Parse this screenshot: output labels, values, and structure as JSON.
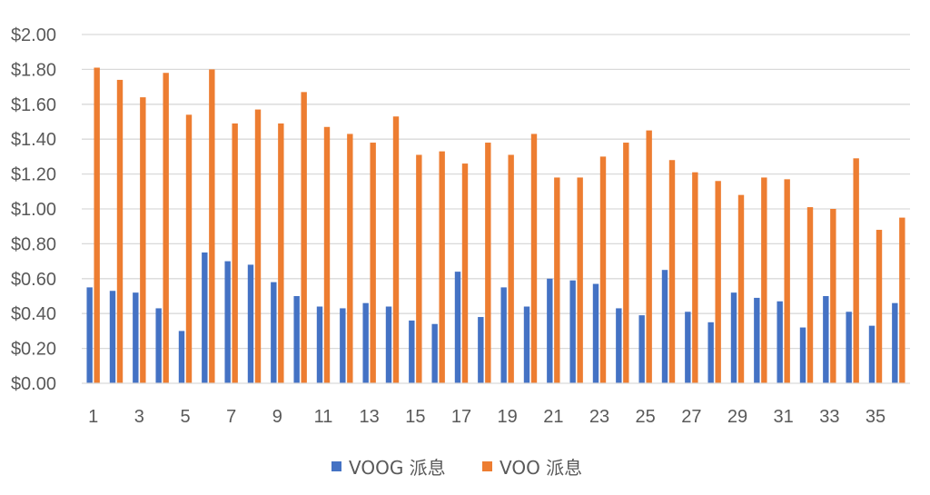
{
  "chart_data": {
    "type": "bar",
    "title": "",
    "xlabel": "",
    "ylabel": "",
    "ylim": [
      0,
      2
    ],
    "y_ticks": [
      "$0.00",
      "$0.20",
      "$0.40",
      "$0.60",
      "$0.80",
      "$1.00",
      "$1.20",
      "$1.40",
      "$1.60",
      "$1.80",
      "$2.00"
    ],
    "x_tick_labels": [
      "1",
      "3",
      "5",
      "7",
      "9",
      "11",
      "13",
      "15",
      "17",
      "19",
      "21",
      "23",
      "25",
      "27",
      "29",
      "31",
      "33",
      "35"
    ],
    "categories": [
      1,
      2,
      3,
      4,
      5,
      6,
      7,
      8,
      9,
      10,
      11,
      12,
      13,
      14,
      15,
      16,
      17,
      18,
      19,
      20,
      21,
      22,
      23,
      24,
      25,
      26,
      27,
      28,
      29,
      30,
      31,
      32,
      33,
      34,
      35,
      36
    ],
    "grid": true,
    "legend_position": "bottom",
    "series": [
      {
        "name": "VOOG 派息",
        "color": "#4472C4",
        "values": [
          0.55,
          0.53,
          0.52,
          0.43,
          0.3,
          0.75,
          0.7,
          0.68,
          0.58,
          0.5,
          0.44,
          0.43,
          0.46,
          0.44,
          0.36,
          0.34,
          0.64,
          0.38,
          0.55,
          0.44,
          0.6,
          0.59,
          0.57,
          0.43,
          0.39,
          0.65,
          0.41,
          0.35,
          0.52,
          0.49,
          0.47,
          0.32,
          0.5,
          0.41,
          0.33,
          0.46
        ]
      },
      {
        "name": "VOO 派息",
        "color": "#ED7D31",
        "values": [
          1.81,
          1.74,
          1.64,
          1.78,
          1.54,
          1.8,
          1.49,
          1.57,
          1.49,
          1.67,
          1.47,
          1.43,
          1.38,
          1.53,
          1.31,
          1.33,
          1.26,
          1.38,
          1.31,
          1.43,
          1.18,
          1.18,
          1.3,
          1.38,
          1.45,
          1.28,
          1.21,
          1.16,
          1.08,
          1.18,
          1.17,
          1.01,
          1.0,
          1.29,
          0.88,
          0.95
        ]
      }
    ]
  }
}
